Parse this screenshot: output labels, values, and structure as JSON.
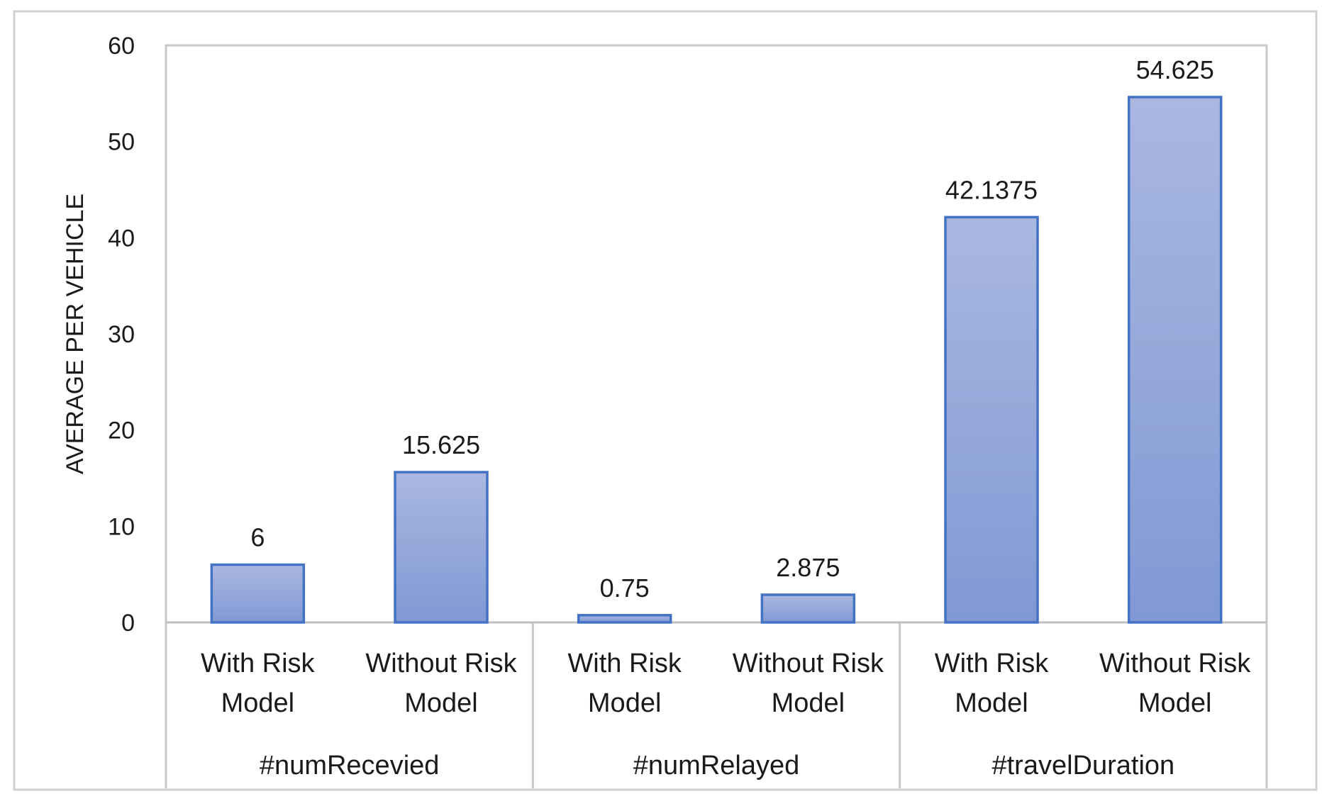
{
  "chart_data": {
    "type": "bar",
    "ylabel": "AVERAGE PER VEHICLE",
    "ylim": [
      0,
      60
    ],
    "yticks": [
      "0",
      "10",
      "20",
      "30",
      "40",
      "50",
      "60"
    ],
    "grid": false,
    "legend": "none",
    "bar_color": "#8fa3d8",
    "bar_border_color": "#4472c4",
    "groups": [
      {
        "name": "#numRecevied",
        "categories": [
          {
            "label_line1": "With Risk",
            "label_line2": "Model",
            "value": 6,
            "value_label": "6"
          },
          {
            "label_line1": "Without Risk",
            "label_line2": "Model",
            "value": 15.625,
            "value_label": "15.625"
          }
        ]
      },
      {
        "name": "#numRelayed",
        "categories": [
          {
            "label_line1": "With Risk",
            "label_line2": "Model",
            "value": 0.75,
            "value_label": "0.75"
          },
          {
            "label_line1": "Without Risk",
            "label_line2": "Model",
            "value": 2.875,
            "value_label": "2.875"
          }
        ]
      },
      {
        "name": "#travelDuration",
        "categories": [
          {
            "label_line1": "With Risk",
            "label_line2": "Model",
            "value": 42.1375,
            "value_label": "42.1375"
          },
          {
            "label_line1": "Without Risk",
            "label_line2": "Model",
            "value": 54.625,
            "value_label": "54.625"
          }
        ]
      }
    ]
  }
}
